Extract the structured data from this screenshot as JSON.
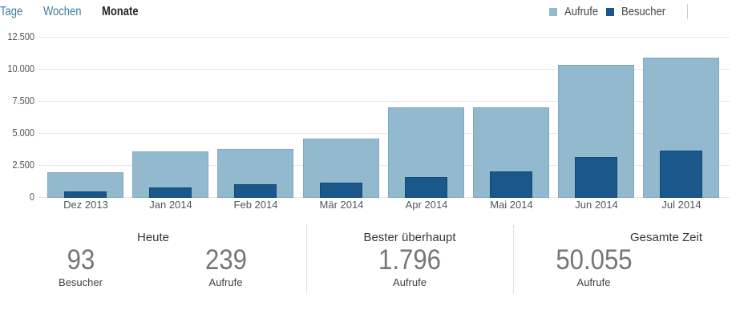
{
  "tabs": [
    {
      "id": "days",
      "label": "Tage",
      "active": false
    },
    {
      "id": "weeks",
      "label": "Wochen",
      "active": false
    },
    {
      "id": "months",
      "label": "Monate",
      "active": true
    }
  ],
  "legend": {
    "views_label": "Aufrufe",
    "visitors_label": "Besucher"
  },
  "colors": {
    "views_fill": "#92b9ce",
    "views_border": "#7fa9c2",
    "visitors_fill": "#1a578a",
    "visitors_border": "#124a74",
    "grid": "#e7e7e7",
    "link": "#417ca3"
  },
  "chart_data": {
    "type": "bar",
    "categories": [
      "Dez 2013",
      "Jan 2014",
      "Feb 2014",
      "Mär 2014",
      "Apr 2014",
      "Mai 2014",
      "Jun 2014",
      "Jul 2014"
    ],
    "series": [
      {
        "name": "Aufrufe",
        "values": [
          1950,
          3550,
          3750,
          4550,
          7000,
          7000,
          10300,
          10900
        ]
      },
      {
        "name": "Besucher",
        "values": [
          450,
          750,
          1000,
          1150,
          1550,
          2000,
          3150,
          3600
        ]
      }
    ],
    "title": "",
    "xlabel": "",
    "ylabel": "",
    "ylim": [
      0,
      12500
    ],
    "y_ticks": [
      "0",
      "2.500",
      "5.000",
      "7.500",
      "10.000",
      "12.500"
    ],
    "grid": true,
    "legend_position": "top-right"
  },
  "summary": {
    "sections": [
      {
        "title": "Heute",
        "stats": [
          {
            "value": "93",
            "label": "Besucher"
          },
          {
            "value": "239",
            "label": "Aufrufe"
          }
        ]
      },
      {
        "title": "Bester überhaupt",
        "stats": [
          {
            "value": "1.796",
            "label": "Aufrufe"
          }
        ]
      },
      {
        "title": "Gesamte Zeit",
        "stats": [
          {
            "value": "50.055",
            "label": "Aufrufe"
          }
        ]
      }
    ]
  }
}
